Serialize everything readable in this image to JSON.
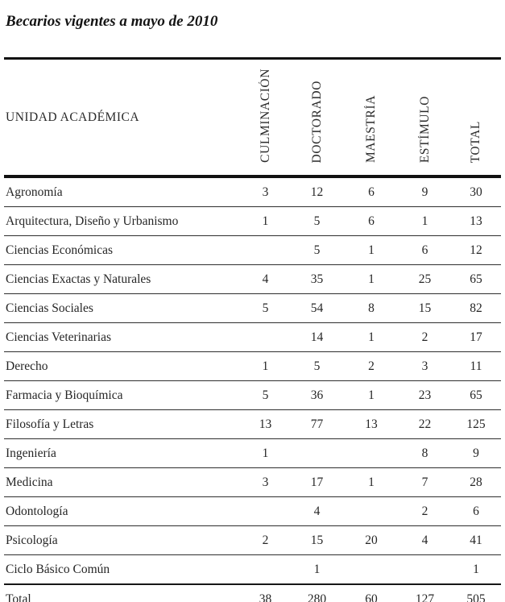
{
  "title": "Becarios vigentes a mayo de 2010",
  "table": {
    "unit_column_header": "UNIDAD ACADÉMICA",
    "columns": [
      "CULMINACIÓN",
      "DOCTORADO",
      "MAESTRÍA",
      "ESTÍMULO",
      "TOTAL"
    ],
    "rows": [
      {
        "unidad": "Agronomía",
        "values": [
          "3",
          "12",
          "6",
          "9",
          "30"
        ]
      },
      {
        "unidad": "Arquitectura, Diseño y Urbanismo",
        "values": [
          "1",
          "5",
          "6",
          "1",
          "13"
        ]
      },
      {
        "unidad": "Ciencias Económicas",
        "values": [
          "",
          "5",
          "1",
          "6",
          "12"
        ]
      },
      {
        "unidad": "Ciencias Exactas y Naturales",
        "values": [
          "4",
          "35",
          "1",
          "25",
          "65"
        ]
      },
      {
        "unidad": "Ciencias Sociales",
        "values": [
          "5",
          "54",
          "8",
          "15",
          "82"
        ]
      },
      {
        "unidad": "Ciencias Veterinarias",
        "values": [
          "",
          "14",
          "1",
          "2",
          "17"
        ]
      },
      {
        "unidad": "Derecho",
        "values": [
          "1",
          "5",
          "2",
          "3",
          "11"
        ]
      },
      {
        "unidad": "Farmacia y Bioquímica",
        "values": [
          "5",
          "36",
          "1",
          "23",
          "65"
        ]
      },
      {
        "unidad": "Filosofía y Letras",
        "values": [
          "13",
          "77",
          "13",
          "22",
          "125"
        ]
      },
      {
        "unidad": "Ingeniería",
        "values": [
          "1",
          "",
          "",
          "8",
          "9"
        ]
      },
      {
        "unidad": "Medicina",
        "values": [
          "3",
          "17",
          "1",
          "7",
          "28"
        ]
      },
      {
        "unidad": "Odontología",
        "values": [
          "",
          "4",
          "",
          "2",
          "6"
        ]
      },
      {
        "unidad": "Psicología",
        "values": [
          "2",
          "15",
          "20",
          "4",
          "41"
        ]
      },
      {
        "unidad": "Ciclo Básico Común",
        "values": [
          "",
          "1",
          "",
          "",
          "1"
        ]
      }
    ],
    "total_row": {
      "unidad": "Total",
      "values": [
        "38",
        "280",
        "60",
        "127",
        "505"
      ]
    }
  }
}
